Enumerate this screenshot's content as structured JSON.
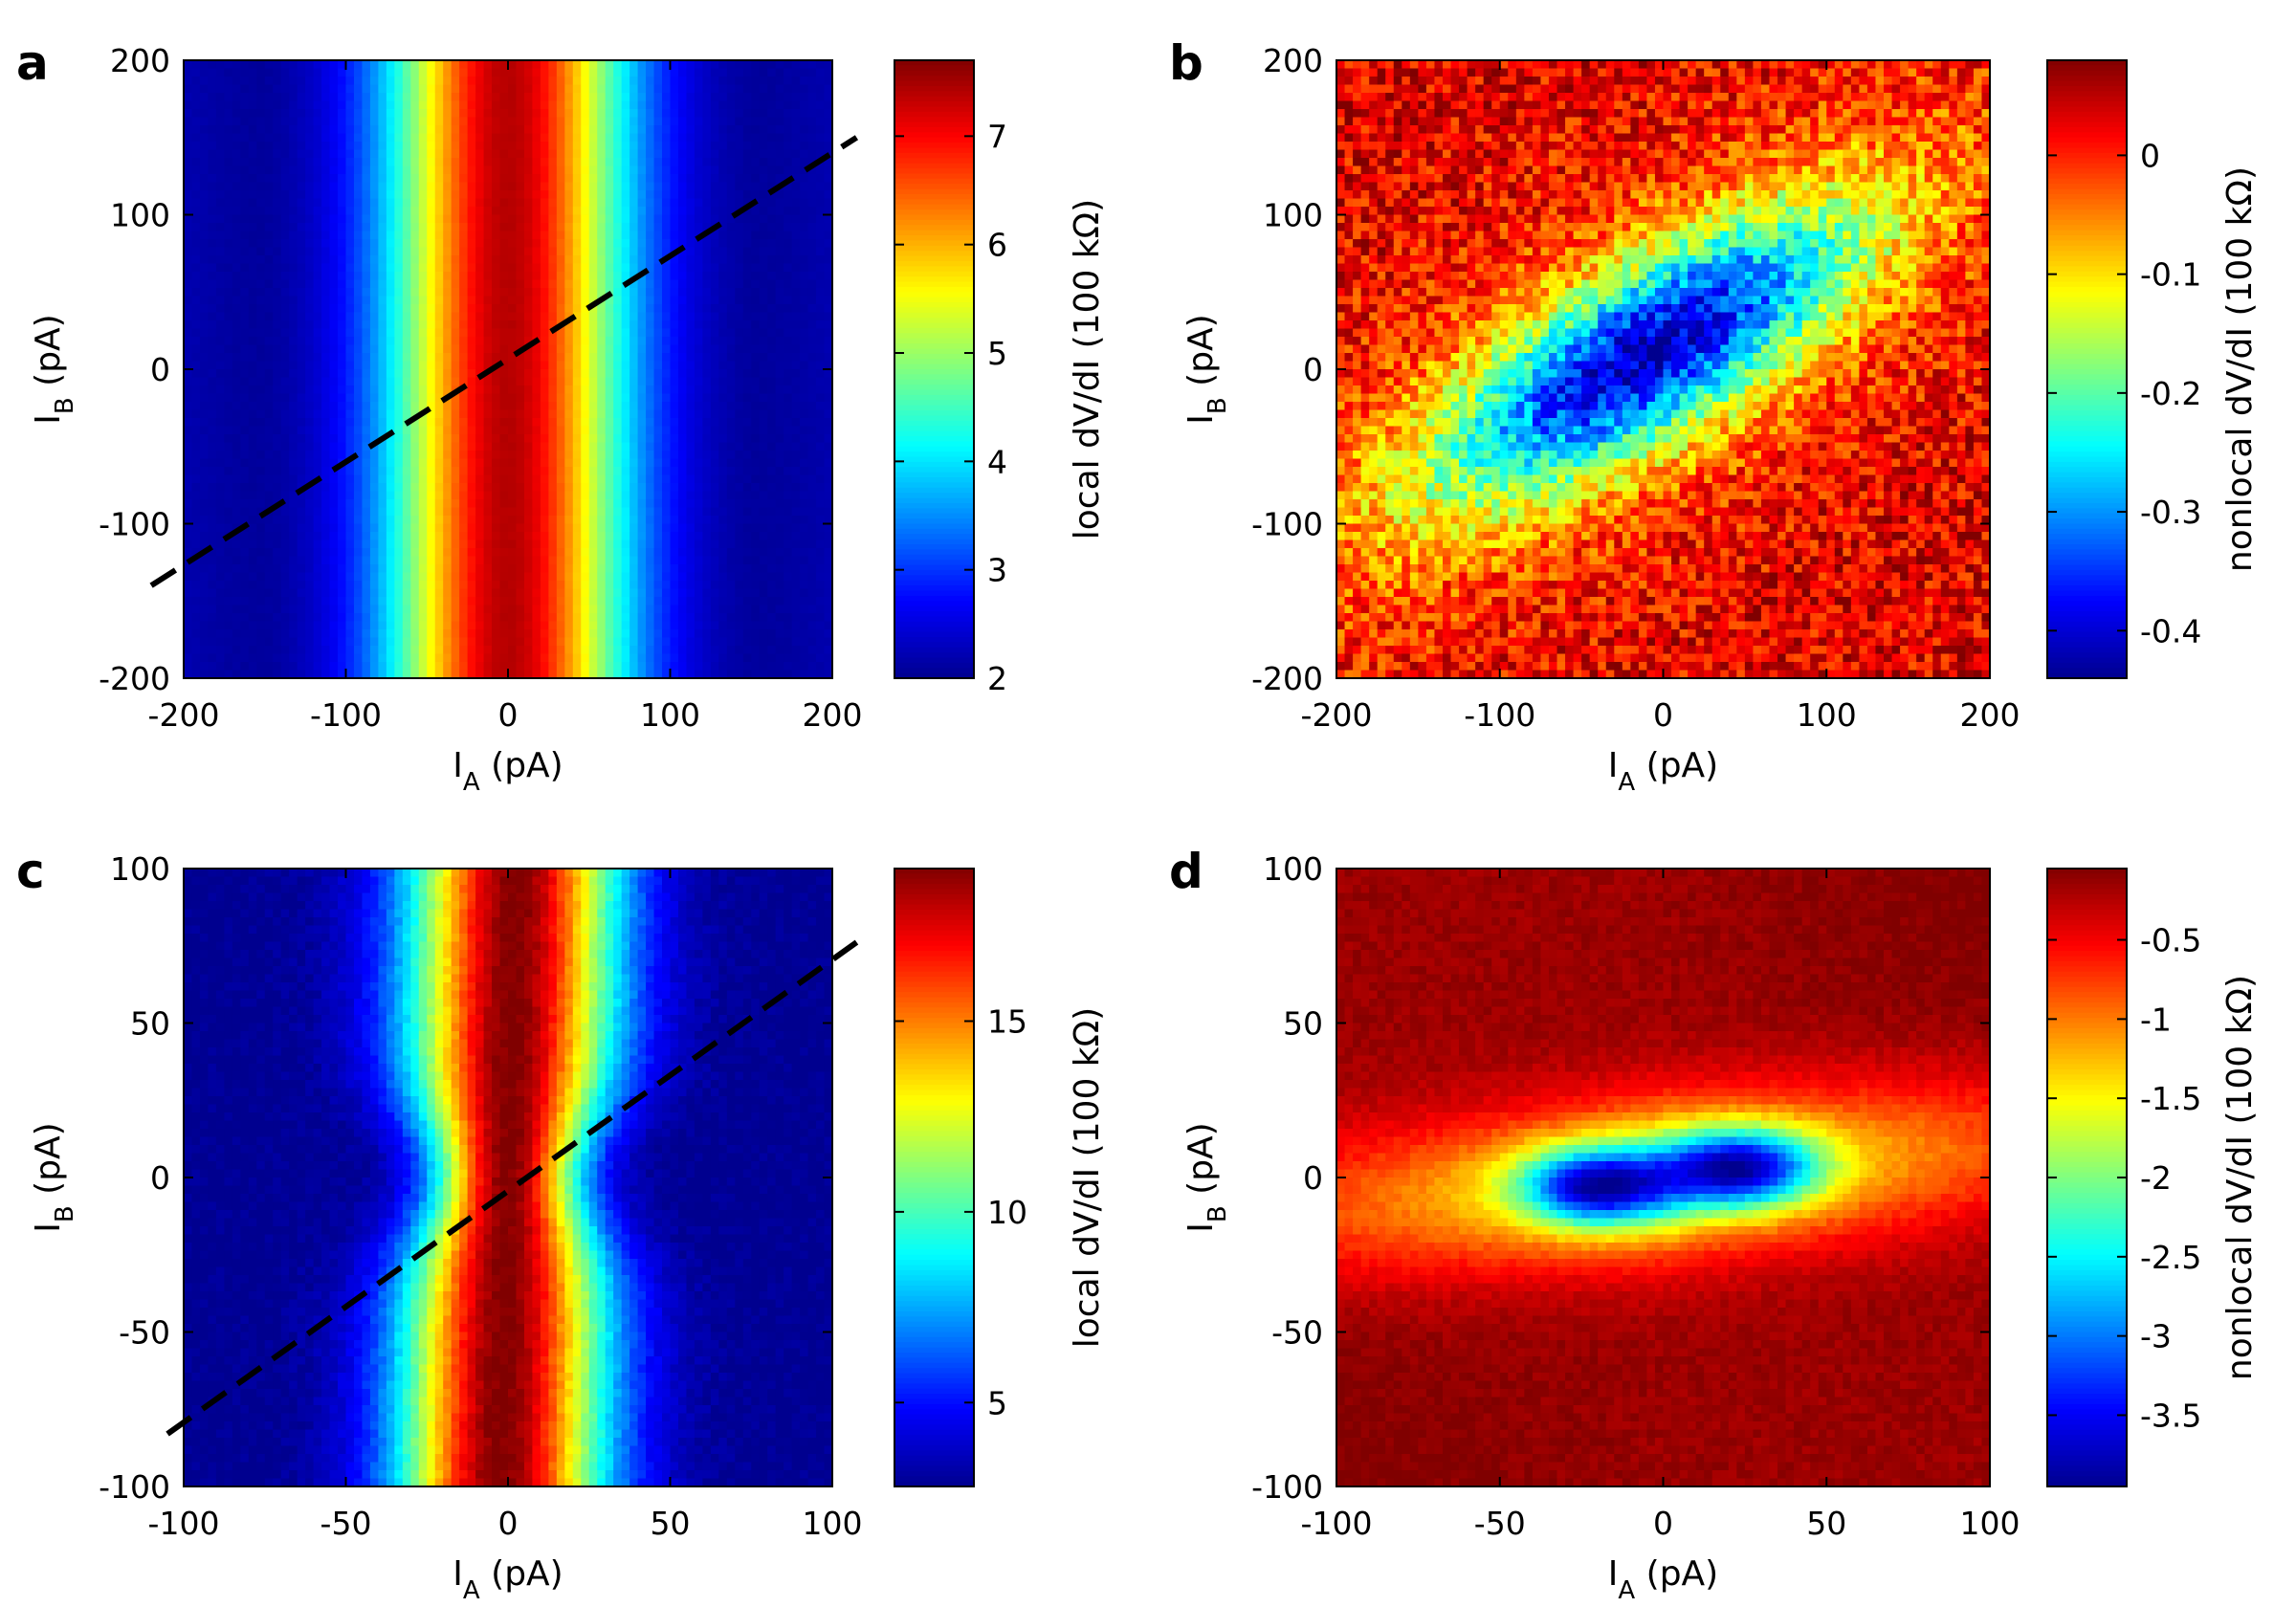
{
  "figure": {
    "panel_count": 4
  },
  "colormap": [
    "#00008f",
    "#0000ff",
    "#0080ff",
    "#00ffff",
    "#80ff80",
    "#ffff00",
    "#ff8000",
    "#ff0000",
    "#800000"
  ],
  "chart_data": [
    {
      "panel": "a",
      "type": "heatmap",
      "model": "local",
      "xlabel": {
        "main": "I",
        "sub": "A",
        "unit": " (pA)"
      },
      "ylabel": {
        "main": "I",
        "sub": "B",
        "unit": " (pA)"
      },
      "xlim": [
        -200,
        200
      ],
      "ylim": [
        -200,
        200
      ],
      "xticks": [
        "-200",
        "-100",
        "0",
        "100",
        "200"
      ],
      "yticks": [
        "-200",
        "-100",
        "0",
        "100",
        "200"
      ],
      "xtick_values": [
        -200,
        -100,
        0,
        100,
        200
      ],
      "ytick_values": [
        -200,
        -100,
        0,
        100,
        200
      ],
      "colorbar": {
        "label": "local dV/dI (100 kΩ)",
        "range": [
          2.0,
          7.7
        ],
        "ticks": [
          "2",
          "3",
          "4",
          "5",
          "6",
          "7"
        ],
        "tick_values": [
          2,
          3,
          4,
          5,
          6,
          7
        ]
      },
      "params": {
        "peak": 7.7,
        "floor": 2.0,
        "width": 45,
        "noise": 0.03,
        "edgeRise": 0.004
      },
      "dashed_line": {
        "from": [
          -220,
          -140
        ],
        "to": [
          215,
          150
        ]
      }
    },
    {
      "panel": "b",
      "type": "heatmap",
      "model": "nonlocal-ellipse",
      "xlabel": {
        "main": "I",
        "sub": "A",
        "unit": " (pA)"
      },
      "ylabel": {
        "main": "I",
        "sub": "B",
        "unit": " (pA)"
      },
      "xlim": [
        -200,
        200
      ],
      "ylim": [
        -200,
        200
      ],
      "xticks": [
        "-200",
        "-100",
        "0",
        "100",
        "200"
      ],
      "yticks": [
        "-200",
        "-100",
        "0",
        "100",
        "200"
      ],
      "xtick_values": [
        -200,
        -100,
        0,
        100,
        200
      ],
      "ytick_values": [
        -200,
        -100,
        0,
        100,
        200
      ],
      "colorbar": {
        "label": "nonlocal dV/dI (100 kΩ)",
        "range": [
          -0.44,
          0.08
        ],
        "ticks": [
          "-0.4",
          "-0.3",
          "-0.2",
          "-0.1",
          "0"
        ],
        "tick_values": [
          -0.4,
          -0.3,
          -0.2,
          -0.1,
          0
        ]
      },
      "params": {
        "center": [
          -10,
          10
        ],
        "angle_deg": 33,
        "a": 160,
        "b": 55,
        "depth": 0.38,
        "offset": 0.03,
        "noise": 0.06
      }
    },
    {
      "panel": "c",
      "type": "heatmap",
      "model": "local-pinch",
      "xlabel": {
        "main": "I",
        "sub": "A",
        "unit": " (pA)"
      },
      "ylabel": {
        "main": "I",
        "sub": "B",
        "unit": " (pA)"
      },
      "xlim": [
        -100,
        100
      ],
      "ylim": [
        -100,
        100
      ],
      "xticks": [
        "-100",
        "-50",
        "0",
        "50",
        "100"
      ],
      "yticks": [
        "-100",
        "-50",
        "0",
        "50",
        "100"
      ],
      "xtick_values": [
        -100,
        -50,
        0,
        50,
        100
      ],
      "ytick_values": [
        -100,
        -50,
        0,
        50,
        100
      ],
      "colorbar": {
        "label": "local dV/dI (100 kΩ)",
        "range": [
          2.8,
          19
        ],
        "ticks": [
          "5",
          "10",
          "15"
        ],
        "tick_values": [
          5,
          10,
          15
        ]
      },
      "params": {
        "peak": 19,
        "floor": 2.8,
        "width": 20,
        "noise": 0.35,
        "pinch": 0.3
      },
      "dashed_line": {
        "from": [
          -105,
          -83
        ],
        "to": [
          110,
          78
        ]
      }
    },
    {
      "panel": "d",
      "type": "heatmap",
      "model": "nonlocal-lobes",
      "xlabel": {
        "main": "I",
        "sub": "A",
        "unit": " (pA)"
      },
      "ylabel": {
        "main": "I",
        "sub": "B",
        "unit": " (pA)"
      },
      "xlim": [
        -100,
        100
      ],
      "ylim": [
        -100,
        100
      ],
      "xticks": [
        "-100",
        "-50",
        "0",
        "50",
        "100"
      ],
      "yticks": [
        "-100",
        "-50",
        "0",
        "50",
        "100"
      ],
      "xtick_values": [
        -100,
        -50,
        0,
        50,
        100
      ],
      "ytick_values": [
        -100,
        -50,
        0,
        50,
        100
      ],
      "colorbar": {
        "label": "nonlocal dV/dI (100 kΩ)",
        "range": [
          -3.95,
          -0.05
        ],
        "ticks": [
          "-3.5",
          "-3",
          "-2.5",
          "-2",
          "-1.5",
          "-1",
          "-0.5"
        ],
        "tick_values": [
          -3.5,
          -3,
          -2.5,
          -2,
          -1.5,
          -1,
          -0.5
        ]
      },
      "params": {
        "lobes": [
          [
            -20,
            -3
          ],
          [
            24,
            3
          ]
        ],
        "lobe_radius": [
          22,
          12
        ],
        "band_slope": 0.1,
        "bg": -0.15,
        "noise": 0.08
      }
    }
  ]
}
